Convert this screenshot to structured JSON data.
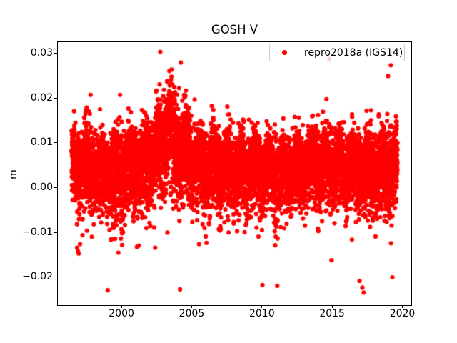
{
  "chart_data": {
    "type": "scatter",
    "title": "GOSH V",
    "xlabel": "",
    "ylabel": "m",
    "xlim": [
      1995.42,
      2020.66
    ],
    "ylim": [
      -0.0263,
      0.0327
    ],
    "grid": false,
    "xticks": [
      {
        "value": 2000,
        "label": "2000"
      },
      {
        "value": 2005,
        "label": "2005"
      },
      {
        "value": 2010,
        "label": "2010"
      },
      {
        "value": 2015,
        "label": "2015"
      },
      {
        "value": 2020,
        "label": "2020"
      }
    ],
    "yticks": [
      {
        "value": -0.02,
        "label": "−0.02"
      },
      {
        "value": -0.01,
        "label": "−0.01"
      },
      {
        "value": 0.0,
        "label": "0.00"
      },
      {
        "value": 0.01,
        "label": "0.01"
      },
      {
        "value": 0.02,
        "label": "0.02"
      },
      {
        "value": 0.03,
        "label": "0.03"
      }
    ],
    "legend": {
      "location": "upper right",
      "framealpha": 0.8
    },
    "series": [
      {
        "name": "repro2018a (IGS14)",
        "color": "#ff0000",
        "marker": "dot",
        "marker_radius_px": 3.1,
        "x_start": 1996.45,
        "x_end": 2019.65,
        "points_per_year": 360,
        "seed": 20180713,
        "annual_amplitude": 0.0018,
        "annual_phase": 0.3,
        "lower_tail_stretch": 1.3,
        "low_outlier_prob": 0.006,
        "low_outlier_range": [
          0.002,
          0.012
        ],
        "high_outlier_prob": 0.002,
        "high_outlier_range": [
          0.003,
          0.008
        ],
        "clip": [
          -0.0245,
          0.0306
        ],
        "trend_keypoints": [
          [
            1996.45,
            0.0048
          ],
          [
            1997.5,
            0.0045
          ],
          [
            1999.0,
            0.004
          ],
          [
            2000.5,
            0.0048
          ],
          [
            2001.8,
            0.006
          ],
          [
            2002.8,
            0.0105
          ],
          [
            2003.4,
            0.0128
          ],
          [
            2004.1,
            0.0095
          ],
          [
            2005.2,
            0.006
          ],
          [
            2006.5,
            0.005
          ],
          [
            2008.0,
            0.0048
          ],
          [
            2010.5,
            0.0038
          ],
          [
            2012.0,
            0.004
          ],
          [
            2013.8,
            0.0055
          ],
          [
            2015.2,
            0.0052
          ],
          [
            2017.0,
            0.0042
          ],
          [
            2018.5,
            0.004
          ],
          [
            2019.65,
            0.005
          ]
        ],
        "sigma_keypoints": [
          [
            1996.45,
            0.0036
          ],
          [
            1999.0,
            0.004
          ],
          [
            2001.5,
            0.0042
          ],
          [
            2003.4,
            0.005
          ],
          [
            2005.0,
            0.004
          ],
          [
            2008.0,
            0.0038
          ],
          [
            2012.0,
            0.0036
          ],
          [
            2016.0,
            0.0038
          ],
          [
            2019.65,
            0.004
          ]
        ],
        "explicit_points": [
          [
            1996.84,
            -0.0134
          ],
          [
            1996.9,
            -0.0142
          ],
          [
            1996.96,
            -0.0147
          ],
          [
            1997.05,
            -0.0126
          ],
          [
            1999.02,
            -0.0229
          ],
          [
            1999.3,
            -0.0115
          ],
          [
            1999.55,
            -0.0114
          ],
          [
            1999.78,
            -0.0145
          ],
          [
            2000.04,
            -0.0128
          ],
          [
            2002.4,
            -0.0134
          ],
          [
            2004.17,
            -0.0227
          ],
          [
            2006.0,
            -0.0109
          ],
          [
            2011.09,
            -0.0219
          ],
          [
            2014.96,
            -0.0162
          ],
          [
            2016.95,
            -0.0208
          ],
          [
            2017.15,
            -0.0223
          ],
          [
            2017.25,
            -0.0234
          ],
          [
            2019.29,
            -0.02
          ],
          [
            1997.8,
            0.0207
          ],
          [
            1999.9,
            0.0207
          ],
          [
            2002.76,
            0.0303
          ],
          [
            2004.22,
            0.0279
          ],
          [
            2014.8,
            0.0287
          ],
          [
            2018.98,
            0.0249
          ],
          [
            2019.18,
            0.0273
          ]
        ]
      }
    ]
  }
}
